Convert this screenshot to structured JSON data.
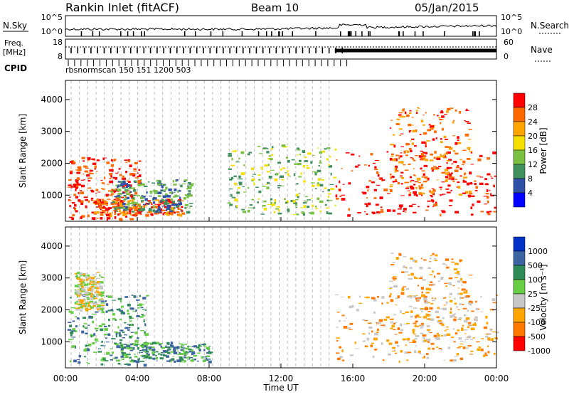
{
  "header": {
    "station": "Rankin Inlet (fitACF)",
    "beam": "Beam 10",
    "date": "05/Jan/2015"
  },
  "noise_panel": {
    "left_label": "N.Sky",
    "right_label": "N.Search",
    "left_ticks": [
      "10^5",
      "10^0"
    ],
    "right_ticks": [
      "10^5",
      "10^0"
    ]
  },
  "freq_panel": {
    "left_label_line1": "Freq.",
    "left_label_line2": "[MHz]",
    "right_label": "Nave",
    "left_ticks": [
      "18",
      "8"
    ],
    "right_ticks": [
      "60",
      "0"
    ]
  },
  "cpid_panel": {
    "label": "CPID",
    "values_text": "rbsnormscan 150 151 1200 503"
  },
  "chart_data": [
    {
      "type": "heatmap",
      "name": "power",
      "ylabel": "Slant Range [km]",
      "y_ticks": [
        "1000",
        "2000",
        "3000",
        "4000"
      ],
      "ylim": [
        180,
        4600
      ],
      "colorbar_label": "Power [dB]",
      "colorbar_ticks": [
        "4",
        "8",
        "12",
        "16",
        "20",
        "24",
        "28"
      ],
      "colors": [
        "#0000ff",
        "#3050a8",
        "#3f8f5f",
        "#7ac143",
        "#f5e000",
        "#ffa500",
        "#ff6a00",
        "#ff0000"
      ],
      "features": [
        {
          "x": [
            0.1,
            4.2
          ],
          "y": [
            250,
            2200
          ],
          "level": 7
        },
        {
          "x": [
            1.5,
            6.5
          ],
          "y": [
            400,
            900
          ],
          "level": 6
        },
        {
          "x": [
            2.5,
            7.0
          ],
          "y": [
            500,
            1500
          ],
          "level": 2
        },
        {
          "x": [
            9.0,
            15.0
          ],
          "y": [
            400,
            2600
          ],
          "level": 3
        },
        {
          "x": [
            15.0,
            24.0
          ],
          "y": [
            400,
            2400
          ],
          "level": 7
        },
        {
          "x": [
            18.0,
            22.5
          ],
          "y": [
            1000,
            3800
          ],
          "level": 6
        }
      ]
    },
    {
      "type": "heatmap",
      "name": "velocity",
      "ylabel": "Slant Range [km]",
      "y_ticks": [
        "1000",
        "2000",
        "3000",
        "4000"
      ],
      "ylim": [
        180,
        4600
      ],
      "colorbar_label": "Velocity [m s⁻¹]",
      "colorbar_ticks": [
        "1000",
        "500",
        "100",
        "25",
        "-25",
        "-100",
        "-500",
        "-1000"
      ],
      "colors": [
        "#0032c8",
        "#3c64a0",
        "#2e8b57",
        "#66cd44",
        "#c8c8c8",
        "#ffa500",
        "#ff7800",
        "#ff0000"
      ],
      "features": [
        {
          "x": [
            0.1,
            4.5
          ],
          "y": [
            300,
            2500
          ],
          "level": 2
        },
        {
          "x": [
            3.0,
            8.0
          ],
          "y": [
            400,
            1000
          ],
          "level": 2
        },
        {
          "x": [
            0.5,
            2.0
          ],
          "y": [
            2000,
            3200
          ],
          "level": 4
        },
        {
          "x": [
            15.0,
            24.0
          ],
          "y": [
            400,
            2500
          ],
          "level": 5
        },
        {
          "x": [
            18.0,
            22.5
          ],
          "y": [
            1000,
            3800
          ],
          "level": 5
        }
      ]
    }
  ],
  "x_axis": {
    "label": "Time UT",
    "ticks": [
      "00:00",
      "04:00",
      "08:00",
      "12:00",
      "16:00",
      "20:00",
      "00:00"
    ],
    "range_hours": [
      0,
      24
    ]
  }
}
